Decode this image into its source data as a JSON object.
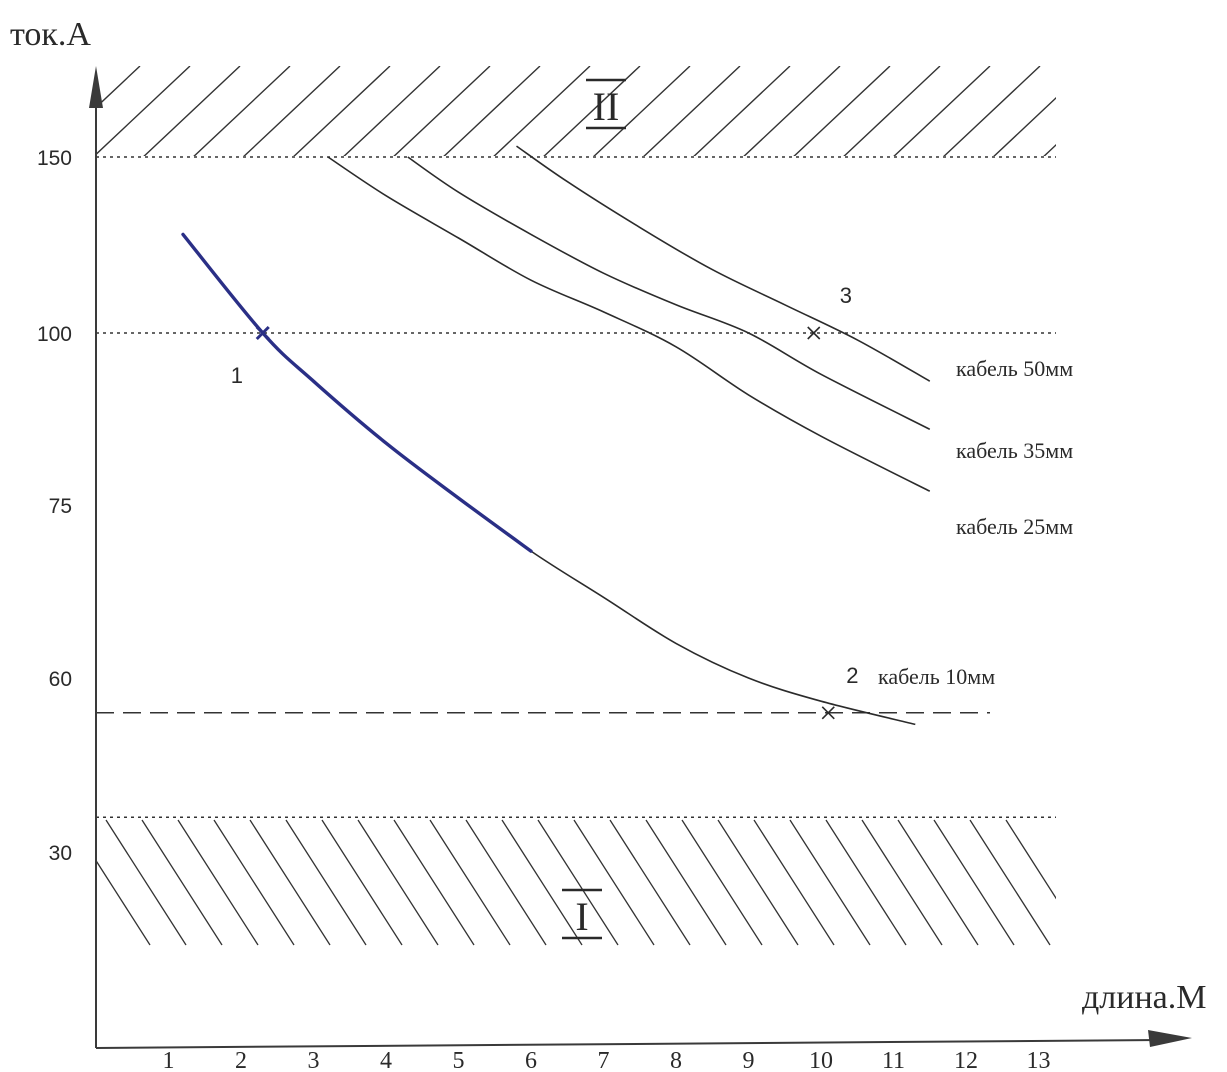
{
  "chart_data": {
    "type": "line",
    "title": "",
    "xlabel": "длина.М",
    "ylabel": "ток.А",
    "x_ticks": [
      "1",
      "2",
      "3",
      "4",
      "5",
      "6",
      "7",
      "8",
      "9",
      "10",
      "11",
      "12",
      "13"
    ],
    "y_ticks": [
      "150",
      "100",
      "75",
      "60",
      "30"
    ],
    "grid": false,
    "series": [
      {
        "name": "кабель 10мм",
        "color": "#2b2b2b",
        "highlight_color": "#2a2f86",
        "highlight_x_range": [
          1.2,
          6.8
        ],
        "x": [
          1.2,
          2.3,
          3,
          4,
          5,
          6,
          7,
          8,
          9,
          10,
          11.3
        ],
        "y": [
          128,
          100,
          93,
          84,
          76,
          71,
          67,
          63,
          60,
          56,
          52
        ]
      },
      {
        "name": "кабель 25мм",
        "color": "#2b2b2b",
        "x": [
          3.2,
          4,
          5,
          6,
          7,
          8,
          9,
          10,
          11.5
        ],
        "y": [
          150,
          139,
          127,
          115,
          106,
          98,
          91,
          85,
          77
        ]
      },
      {
        "name": "кабель 35мм",
        "color": "#2b2b2b",
        "x": [
          4.3,
          5,
          6,
          7,
          8,
          9,
          10,
          11.5
        ],
        "y": [
          150,
          140,
          128,
          117,
          108,
          100,
          94,
          86
        ]
      },
      {
        "name": "кабель 50мм",
        "color": "#2b2b2b",
        "x": [
          5.8,
          6.5,
          7.5,
          8.5,
          9.5,
          10.5,
          11.5
        ],
        "y": [
          153,
          143,
          130,
          118,
          108,
          99,
          93
        ]
      }
    ],
    "reference_lines": [
      {
        "y": 150,
        "style": "dotted"
      },
      {
        "y": 100,
        "style": "dotted"
      },
      {
        "y": 54,
        "style": "dashed"
      },
      {
        "y": 36,
        "style": "dotted"
      }
    ],
    "markers": [
      {
        "label": "1",
        "x": 2.3,
        "y": 100,
        "color": "#2a2f86"
      },
      {
        "label": "2",
        "x": 10.1,
        "y": 54,
        "color": "#2b2b2b"
      },
      {
        "label": "3",
        "x": 9.9,
        "y": 100,
        "color": "#2b2b2b"
      }
    ],
    "regions": [
      {
        "label": "II",
        "y_from": 150,
        "y_to": 175,
        "hatch": "forward"
      },
      {
        "label": "I",
        "y_from": 10,
        "y_to": 36,
        "hatch": "backward"
      }
    ],
    "axis_color": "#3a3a3a"
  }
}
